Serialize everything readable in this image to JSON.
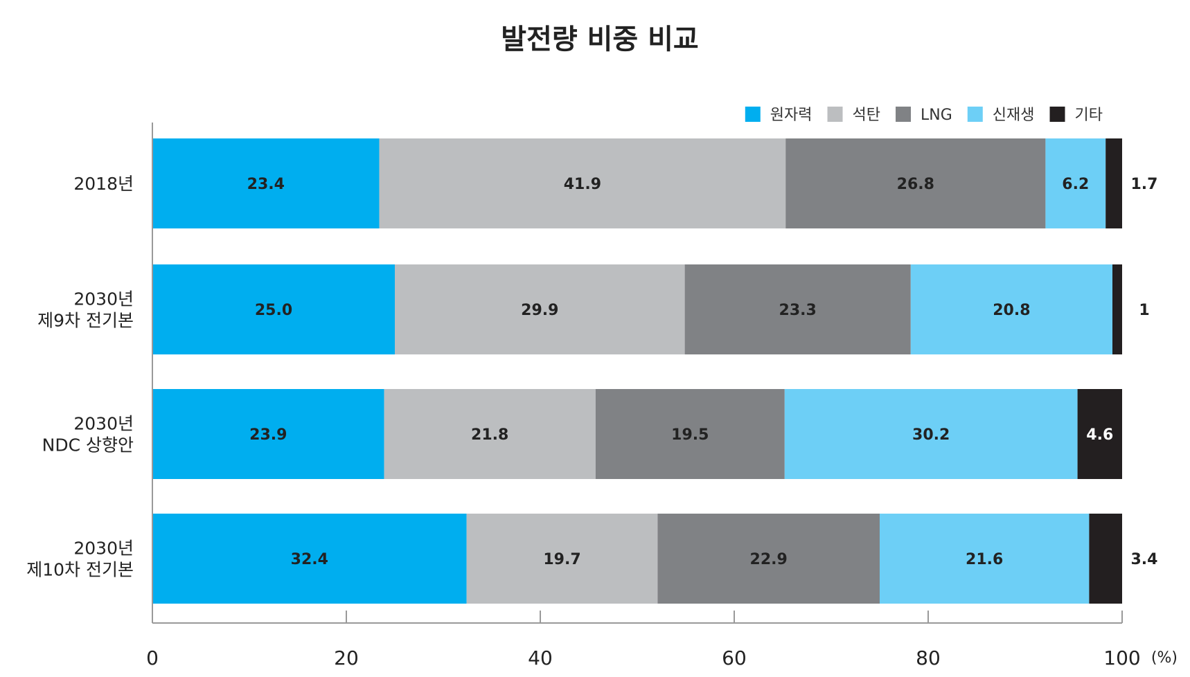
{
  "chart_data": {
    "type": "bar",
    "orientation": "horizontal",
    "stacked": true,
    "title": "발전량 비중 비교",
    "categories": [
      "2018년",
      "2030년\n제9차 전기본",
      "2030년\nNDC 상향안",
      "2030년\n제10차 전기본"
    ],
    "series": [
      {
        "name": "원자력",
        "color": "#00AEEF",
        "values": [
          23.4,
          25.0,
          23.9,
          32.4
        ],
        "labels": [
          "23.4",
          "25.0",
          "23.9",
          "32.4"
        ]
      },
      {
        "name": "석탄",
        "color": "#BCBEC0",
        "values": [
          41.9,
          29.9,
          21.8,
          19.7
        ],
        "labels": [
          "41.9",
          "29.9",
          "21.8",
          "19.7"
        ]
      },
      {
        "name": "LNG",
        "color": "#808285",
        "values": [
          26.8,
          23.3,
          19.5,
          22.9
        ],
        "labels": [
          "26.8",
          "23.3",
          "19.5",
          "22.9"
        ]
      },
      {
        "name": "신재생",
        "color": "#6DCFF6",
        "values": [
          6.2,
          20.8,
          30.2,
          21.6
        ],
        "labels": [
          "6.2",
          "20.8",
          "30.2",
          "21.6"
        ]
      },
      {
        "name": "기타",
        "color": "#231F20",
        "values": [
          1.7,
          1,
          4.6,
          3.4
        ],
        "labels": [
          "1.7",
          "1",
          "4.6",
          "3.4"
        ]
      }
    ],
    "xlim": [
      0,
      100
    ],
    "xticks": [
      "0",
      "20",
      "40",
      "60",
      "80",
      "100"
    ],
    "xunit": "(%)",
    "legend": "top-right",
    "grid": false
  }
}
